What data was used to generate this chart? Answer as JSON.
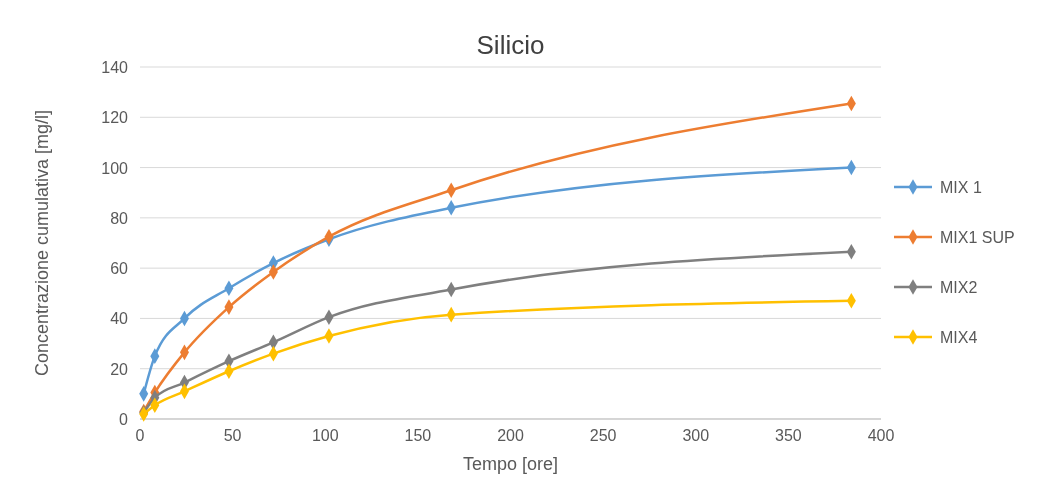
{
  "chart_data": {
    "type": "line",
    "title": "Silicio",
    "xlabel": "Tempo [ore]",
    "ylabel": "Concentrazione cumulativa [mg/l]",
    "x": [
      2,
      8,
      24,
      48,
      72,
      102,
      168,
      384
    ],
    "series": [
      {
        "name": "MIX 1",
        "color": "#5b9bd5",
        "values": [
          10,
          25,
          40,
          52,
          62,
          71.5,
          84,
          100
        ]
      },
      {
        "name": "MIX1 SUP",
        "color": "#ed7d31",
        "values": [
          3,
          10.5,
          26.5,
          44.5,
          58.5,
          72.5,
          91,
          125.5
        ]
      },
      {
        "name": "MIX2",
        "color": "#7f7f7f",
        "values": [
          2.5,
          8.5,
          14.5,
          23,
          30.5,
          40.5,
          51.5,
          66.5
        ]
      },
      {
        "name": "MIX4",
        "color": "#ffc000",
        "values": [
          2,
          5.5,
          11,
          19,
          26,
          33,
          41.5,
          47
        ]
      }
    ],
    "xlim": [
      0,
      400
    ],
    "xticks": [
      0,
      50,
      100,
      150,
      200,
      250,
      300,
      350,
      400
    ],
    "ylim": [
      0,
      140
    ],
    "yticks": [
      0,
      20,
      40,
      60,
      80,
      100,
      120,
      140
    ],
    "grid": "y",
    "legend": "right",
    "marker": "diamond",
    "line_style": "solid"
  }
}
